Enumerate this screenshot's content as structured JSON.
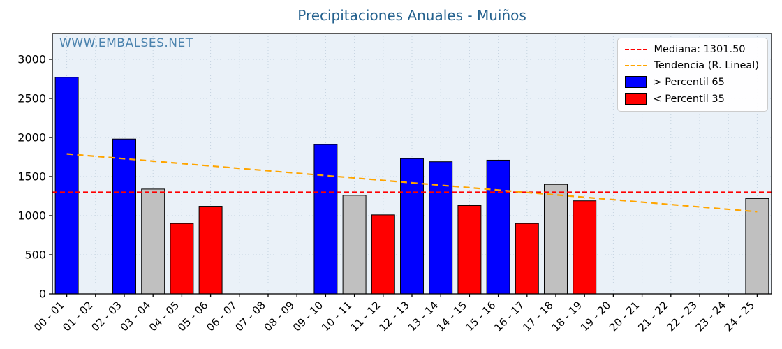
{
  "title": "Precipitaciones Anuales - Muiños",
  "watermark": "WWW.EMBALSES.NET",
  "legend": {
    "median_label": "Mediana: 1301.50",
    "trend_label": "Tendencia (R. Lineal)",
    "high_label": " > Percentil 65",
    "low_label": " < Percentil 35"
  },
  "colors": {
    "high": "#0000ff",
    "low": "#ff0000",
    "mid": "#c0c0c0",
    "median": "#ff0000",
    "trend": "#ffa500",
    "grid": "#c4d2df",
    "plot_bg": "#eaf1f8",
    "axis": "#000000",
    "title": "#24618e",
    "watermark": "#4a82ad"
  },
  "chart_data": {
    "type": "bar",
    "title": "Precipitaciones Anuales - Muiños",
    "xlabel": "",
    "ylabel": "",
    "categories": [
      "00 - 01",
      "01 - 02",
      "02 - 03",
      "03 - 04",
      "04 - 05",
      "05 - 06",
      "06 - 07",
      "07 - 08",
      "08 - 09",
      "09 - 10",
      "10 - 11",
      "11 - 12",
      "12 - 13",
      "13 - 14",
      "14 - 15",
      "15 - 16",
      "16 - 17",
      "17 - 18",
      "18 - 19",
      "19 - 20",
      "20 - 21",
      "21 - 22",
      "22 - 23",
      "23 - 24",
      "24 - 25"
    ],
    "values": [
      2770,
      null,
      1980,
      1340,
      900,
      1120,
      null,
      null,
      null,
      1910,
      1260,
      1010,
      1730,
      1690,
      1130,
      1710,
      900,
      1400,
      1190,
      null,
      null,
      null,
      null,
      null,
      1220
    ],
    "bar_classes": [
      "high",
      null,
      "high",
      "mid",
      "low",
      "low",
      null,
      null,
      null,
      "high",
      "mid",
      "low",
      "high",
      "high",
      "low",
      "high",
      "low",
      "mid",
      "low",
      null,
      null,
      null,
      null,
      null,
      "mid"
    ],
    "median": 1301.5,
    "trend": {
      "start": 1790,
      "end": 1050
    },
    "ylim": [
      0,
      3330
    ],
    "yticks": [
      0,
      500,
      1000,
      1500,
      2000,
      2500,
      3000
    ],
    "grid": true,
    "legend_position": "top-right"
  }
}
